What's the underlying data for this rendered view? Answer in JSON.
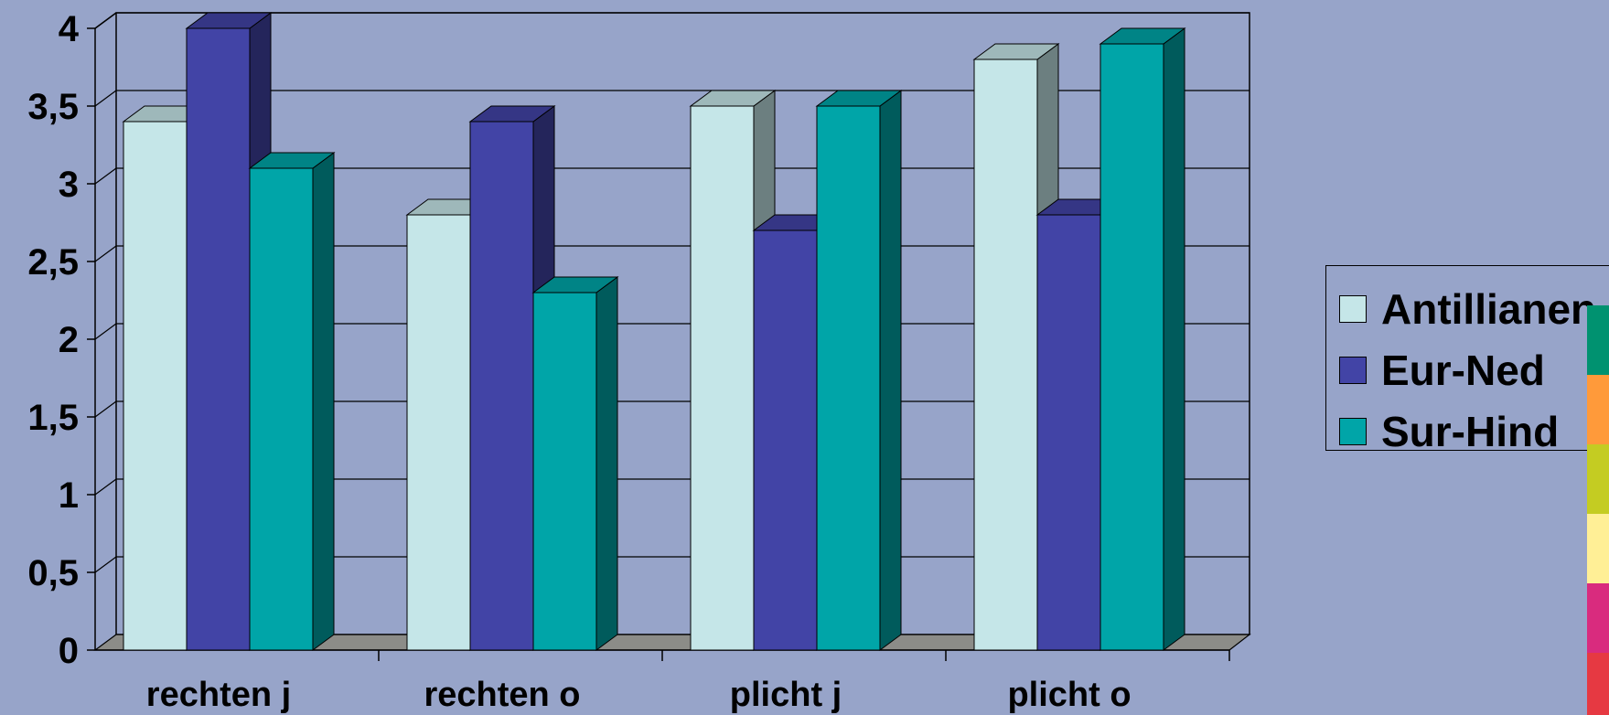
{
  "chart_data": {
    "type": "bar",
    "categories": [
      "rechten j",
      "rechten o",
      "plicht j",
      "plicht o"
    ],
    "series": [
      {
        "name": "Antillianen",
        "values": [
          3.4,
          2.8,
          3.5,
          3.8
        ],
        "color": "#c5e6e8"
      },
      {
        "name": "Eur-Ned",
        "values": [
          4.0,
          3.4,
          2.7,
          2.8
        ],
        "color": "#4244a6"
      },
      {
        "name": "Sur-Hind",
        "values": [
          3.1,
          2.3,
          3.5,
          3.9
        ],
        "color": "#00a5a8"
      }
    ],
    "yticks": [
      "0",
      "0,5",
      "1",
      "1,5",
      "2",
      "2,5",
      "3",
      "3,5",
      "4"
    ],
    "ylim": [
      0,
      4
    ],
    "grid": true,
    "legend_position": "right",
    "style": "3d-clustered-bar"
  },
  "decor": {
    "background": "#97a4c9",
    "stripe_colors": [
      "#009270",
      "#ff9a3a",
      "#c4cc22",
      "#ffef96",
      "#d92b7e",
      "#e63942"
    ]
  }
}
